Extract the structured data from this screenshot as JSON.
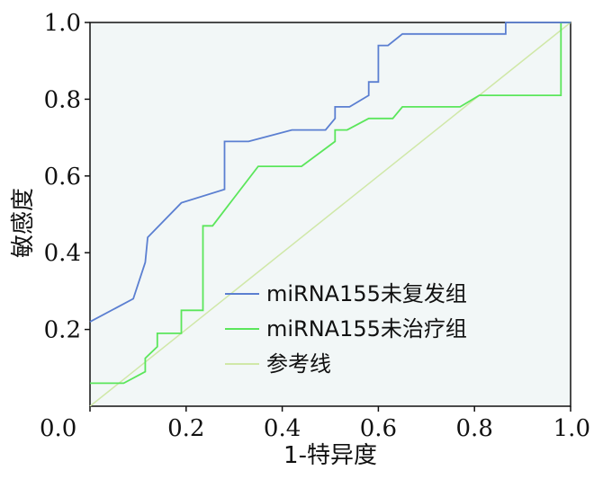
{
  "chart_data": {
    "type": "line",
    "xlabel": "1-特异度",
    "ylabel": "敏感度",
    "xlim": [
      0,
      1
    ],
    "ylim": [
      0,
      1
    ],
    "x_ticks": [
      "0.0",
      "0.2",
      "0.4",
      "0.6",
      "0.8",
      "1.0"
    ],
    "y_ticks": [
      "0.2",
      "0.4",
      "0.6",
      "0.8",
      "1.0"
    ],
    "x_tick_values": [
      0,
      0.2,
      0.4,
      0.6,
      0.8,
      1.0
    ],
    "y_tick_values": [
      0.2,
      0.4,
      0.6,
      0.8,
      1.0
    ],
    "grid": false,
    "legend_position": "bottom-center",
    "background_color": "#f2f7f7",
    "series": [
      {
        "name": "miRNA155未复发组",
        "color": "#5b7fd1",
        "points": [
          [
            0,
            0.22
          ],
          [
            0.09,
            0.28
          ],
          [
            0.115,
            0.375
          ],
          [
            0.12,
            0.44
          ],
          [
            0.19,
            0.53
          ],
          [
            0.28,
            0.565
          ],
          [
            0.28,
            0.69
          ],
          [
            0.33,
            0.69
          ],
          [
            0.42,
            0.72
          ],
          [
            0.49,
            0.72
          ],
          [
            0.51,
            0.75
          ],
          [
            0.51,
            0.78
          ],
          [
            0.54,
            0.78
          ],
          [
            0.58,
            0.81
          ],
          [
            0.58,
            0.845
          ],
          [
            0.6,
            0.845
          ],
          [
            0.6,
            0.94
          ],
          [
            0.62,
            0.94
          ],
          [
            0.65,
            0.97
          ],
          [
            0.865,
            0.97
          ],
          [
            0.865,
            1.0
          ],
          [
            1.0,
            1.0
          ]
        ]
      },
      {
        "name": "miRNA155未治疗组",
        "color": "#5be65b",
        "points": [
          [
            0,
            0.06
          ],
          [
            0.07,
            0.06
          ],
          [
            0.115,
            0.09
          ],
          [
            0.115,
            0.125
          ],
          [
            0.14,
            0.155
          ],
          [
            0.14,
            0.19
          ],
          [
            0.19,
            0.19
          ],
          [
            0.19,
            0.25
          ],
          [
            0.235,
            0.25
          ],
          [
            0.235,
            0.47
          ],
          [
            0.255,
            0.47
          ],
          [
            0.35,
            0.625
          ],
          [
            0.44,
            0.625
          ],
          [
            0.51,
            0.69
          ],
          [
            0.51,
            0.72
          ],
          [
            0.535,
            0.72
          ],
          [
            0.58,
            0.75
          ],
          [
            0.63,
            0.75
          ],
          [
            0.65,
            0.78
          ],
          [
            0.77,
            0.78
          ],
          [
            0.81,
            0.81
          ],
          [
            0.98,
            0.81
          ],
          [
            0.98,
            1.0
          ],
          [
            1.0,
            1.0
          ]
        ]
      },
      {
        "name": "参考线",
        "color": "#d0e8a8",
        "points": [
          [
            0,
            0
          ],
          [
            1,
            1
          ]
        ]
      }
    ]
  }
}
